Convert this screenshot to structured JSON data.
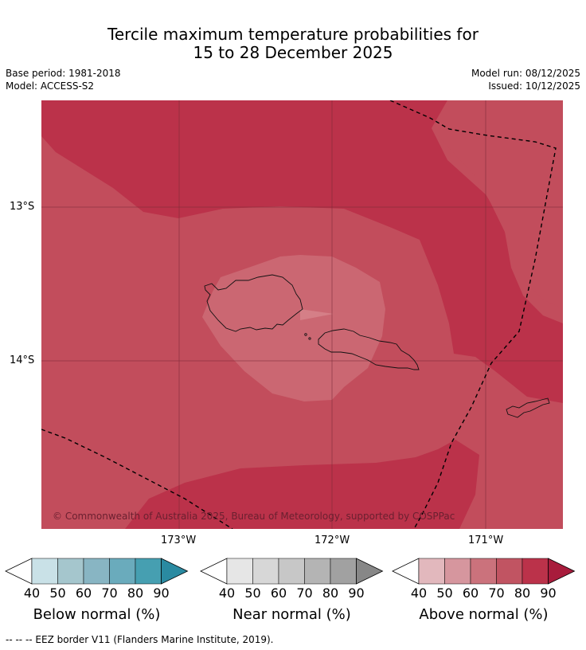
{
  "title": {
    "line1": "Tercile maximum temperature probabilities for",
    "line2": "15 to 28 December 2025"
  },
  "meta": {
    "base_period": "Base period: 1981-2018",
    "model": "Model: ACCESS-S2",
    "model_run": "Model run: 08/12/2025",
    "issued": "Issued: 10/12/2025"
  },
  "map": {
    "lat_labels": [
      "13°S",
      "14°S"
    ],
    "lon_labels": [
      "173°W",
      "172°W",
      "171°W"
    ],
    "credit": "© Commonwealth of Australia 2025, Bureau of Meteorology, supported by COSPPac",
    "colors": {
      "deep": "#bb324a",
      "mid": "#c24d5c",
      "light": "#cb6772",
      "lightest": "#d57f87",
      "coast": "#111111",
      "eez": "#000000",
      "grid": "#7a2a36"
    }
  },
  "colorbars": [
    {
      "label": "Below normal (%)",
      "ticks": [
        "40",
        "50",
        "60",
        "70",
        "80",
        "90"
      ],
      "colors": [
        "#ffffff",
        "#c9e1e7",
        "#a5c6cd",
        "#88b5c3",
        "#6aabbc",
        "#469fb1",
        "#2a8aa1"
      ]
    },
    {
      "label": "Near normal (%)",
      "ticks": [
        "40",
        "50",
        "60",
        "70",
        "80",
        "90"
      ],
      "colors": [
        "#ffffff",
        "#e6e6e6",
        "#d7d7d7",
        "#c7c7c7",
        "#b4b4b4",
        "#a1a1a1",
        "#878787"
      ]
    },
    {
      "label": "Above normal (%)",
      "ticks": [
        "40",
        "50",
        "60",
        "70",
        "80",
        "90"
      ],
      "colors": [
        "#ffffff",
        "#e2b8bd",
        "#d6969e",
        "#cb727c",
        "#c15462",
        "#bb324a",
        "#a81c3c"
      ]
    }
  ],
  "footnote": "--  --  -- EEZ border V11 (Flanders Marine Institute, 2019)."
}
